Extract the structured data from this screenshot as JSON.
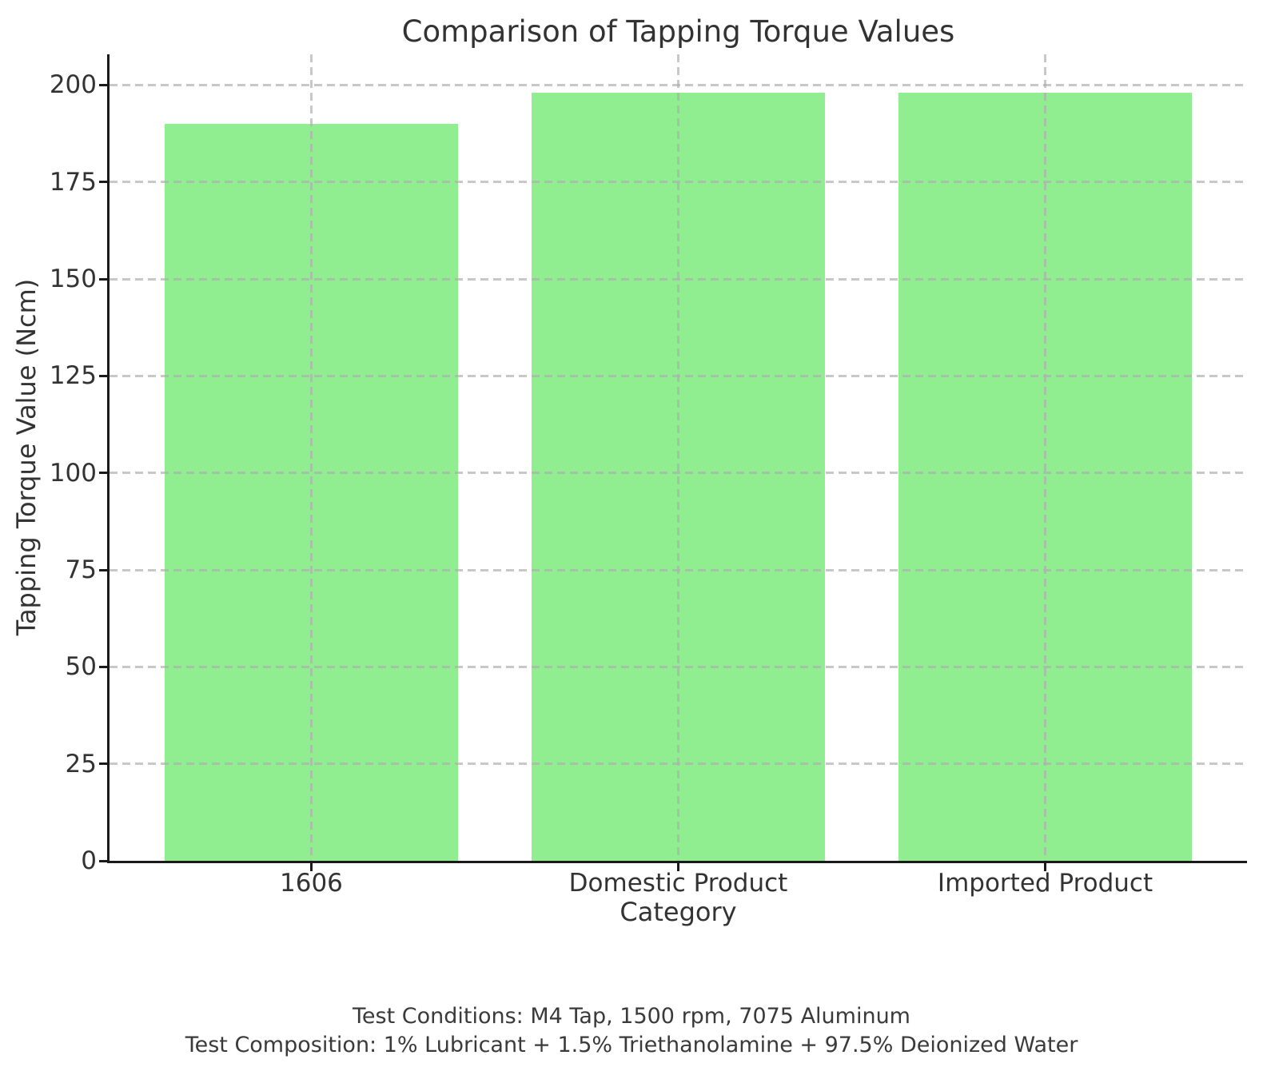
{
  "chart_data": {
    "type": "bar",
    "title": "Comparison of Tapping Torque Values",
    "xlabel": "Category",
    "ylabel": "Tapping Torque Value (Ncm)",
    "categories": [
      "1606",
      "Domestic Product",
      "Imported Product"
    ],
    "values": [
      190,
      198,
      198
    ],
    "yticks": [
      0,
      25,
      50,
      75,
      100,
      125,
      150,
      175,
      200
    ],
    "ylim": [
      0,
      207.9
    ],
    "bar_width_fraction": 0.8,
    "grid": "dashed, horizontal and vertical, drawn over bars",
    "legend": "none",
    "colors": {
      "bar": "#90ee90",
      "grid": "#b0b0b0",
      "axis": "#1a1a1a",
      "text": "#333333",
      "background": "#ffffff"
    }
  },
  "annotations": {
    "footnote_line1": "Test Conditions: M4 Tap, 1500 rpm, 7075 Aluminum",
    "footnote_line2": "Test Composition: 1% Lubricant + 1.5% Triethanolamine + 97.5% Deionized Water"
  }
}
